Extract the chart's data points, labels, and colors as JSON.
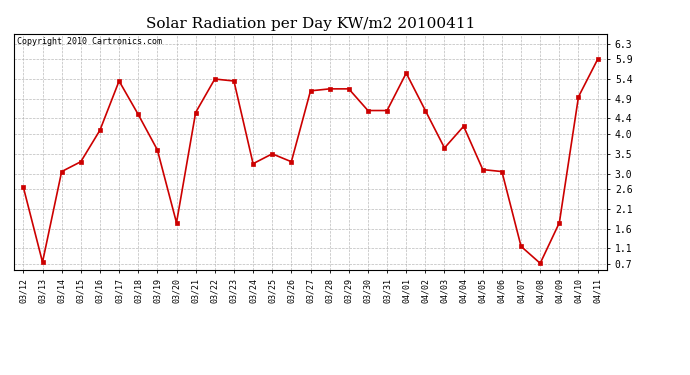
{
  "title": "Solar Radiation per Day KW/m2 20100411",
  "copyright": "Copyright 2010 Cartronics.com",
  "dates": [
    "03/12",
    "03/13",
    "03/14",
    "03/15",
    "03/16",
    "03/17",
    "03/18",
    "03/19",
    "03/20",
    "03/21",
    "03/22",
    "03/23",
    "03/24",
    "03/25",
    "03/26",
    "03/27",
    "03/28",
    "03/29",
    "03/30",
    "03/31",
    "04/01",
    "04/02",
    "04/03",
    "04/04",
    "04/05",
    "04/06",
    "04/07",
    "04/08",
    "04/09",
    "04/10",
    "04/11"
  ],
  "values": [
    2.65,
    0.75,
    3.05,
    3.3,
    4.1,
    5.35,
    4.5,
    3.6,
    1.75,
    4.55,
    5.4,
    5.35,
    3.25,
    3.5,
    3.3,
    5.1,
    5.15,
    5.15,
    4.6,
    4.6,
    5.55,
    4.6,
    3.65,
    4.2,
    3.1,
    3.05,
    1.15,
    0.72,
    1.75,
    4.95,
    5.9
  ],
  "line_color": "#cc0000",
  "marker": "s",
  "marker_size": 2.5,
  "bg_color": "#ffffff",
  "grid_color": "#aaaaaa",
  "yticks": [
    0.7,
    1.1,
    1.6,
    2.1,
    2.6,
    3.0,
    3.5,
    4.0,
    4.4,
    4.9,
    5.4,
    5.9,
    6.3
  ],
  "ylim": [
    0.55,
    6.55
  ],
  "title_fontsize": 11,
  "copyright_fontsize": 6,
  "xtick_fontsize": 6,
  "ytick_fontsize": 7
}
